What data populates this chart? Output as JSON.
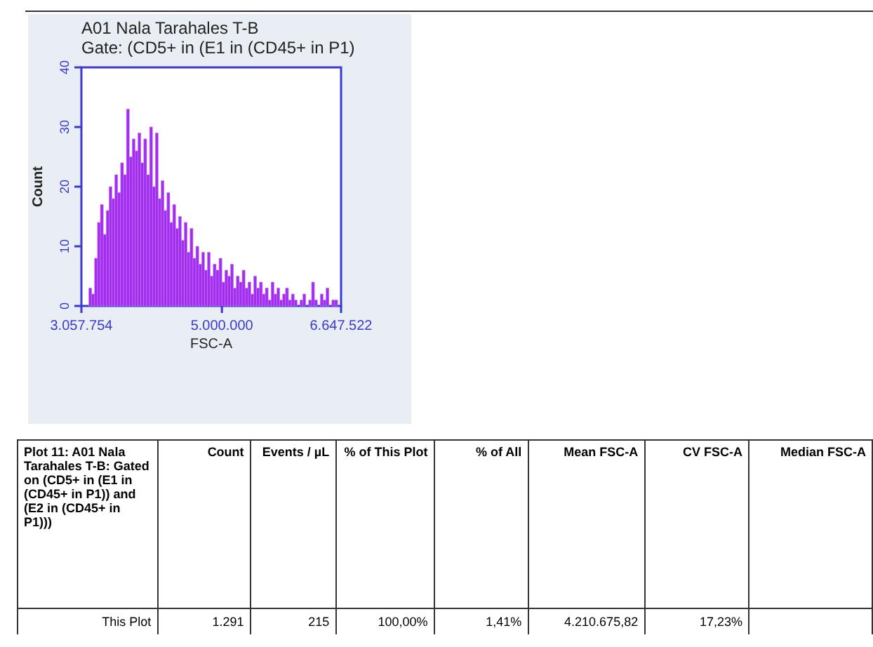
{
  "chart_data": {
    "type": "histogram",
    "title": "A01 Nala Tarahales T-B",
    "subtitle": "Gate: (CD5+ in (E1 in (CD45+ in P1)",
    "xlabel": "FSC-A",
    "ylabel": "Count",
    "color": "#a22cf0",
    "bins": [
      3080000,
      3120000,
      3160000,
      3200000,
      3240000,
      3280000,
      3320000,
      3360000,
      3400000,
      3440000,
      3480000,
      3520000,
      3560000,
      3600000,
      3640000,
      3680000,
      3720000,
      3760000,
      3800000,
      3840000,
      3880000,
      3920000,
      3960000,
      4000000,
      4040000,
      4080000,
      4120000,
      4160000,
      4200000,
      4240000,
      4280000,
      4320000,
      4360000,
      4400000,
      4440000,
      4480000,
      4520000,
      4560000,
      4600000,
      4640000,
      4680000,
      4720000,
      4760000,
      4800000,
      4840000,
      4880000,
      4920000,
      4960000,
      5000000,
      5040000,
      5080000,
      5120000,
      5160000,
      5200000,
      5240000,
      5280000,
      5320000,
      5360000,
      5400000,
      5440000,
      5480000,
      5520000,
      5560000,
      5600000,
      5640000,
      5680000,
      5720000,
      5760000,
      5800000,
      5840000,
      5880000,
      5920000,
      5960000,
      6000000,
      6040000,
      6080000,
      6120000,
      6160000,
      6200000,
      6240000,
      6280000,
      6320000,
      6360000,
      6400000,
      6440000,
      6480000,
      6520000,
      6560000,
      6600000,
      6640000
    ],
    "values": [
      0,
      0,
      3,
      2,
      8,
      14,
      17,
      12,
      16,
      20,
      18,
      22,
      19,
      24,
      22,
      33,
      25,
      28,
      26,
      29,
      24,
      28,
      22,
      30,
      20,
      29,
      18,
      21,
      16,
      19,
      14,
      17,
      13,
      15,
      11,
      14,
      9,
      13,
      8,
      10,
      7,
      9,
      6,
      9,
      5,
      7,
      6,
      8,
      4,
      6,
      5,
      7,
      3,
      5,
      4,
      6,
      3,
      4,
      2,
      5,
      3,
      4,
      2,
      3,
      1,
      4,
      2,
      3,
      1,
      2,
      3,
      1,
      2,
      1,
      0,
      1,
      2,
      0,
      1,
      4,
      1,
      0,
      2,
      1,
      3,
      0,
      1,
      1,
      0
    ],
    "xlim": [
      3057754,
      6647522
    ],
    "xticks": [
      {
        "value": 3057754,
        "label": "3.057.754"
      },
      {
        "value": 5000000,
        "label": "5.000.000"
      },
      {
        "value": 6647522,
        "label": "6.647.522"
      }
    ],
    "ylim": [
      0,
      40
    ],
    "yticks": [
      0,
      10,
      20,
      30,
      40
    ],
    "annotations": [
      "Plot 11: A01 Nala Tarahales T-B: Gated on (CD5+ in (E1 in (CD45+ in P1)) and (E2 in (CD45+ in P1)))",
      "Count",
      "Events / µL",
      "% of This Plot",
      "% of All",
      "Mean FSC-A",
      "CV FSC-A",
      "Median FSC-A",
      "This Plot",
      "1.291",
      "215",
      "100,00%",
      "1,41%",
      "4.210.675,82",
      "17,23%"
    ]
  }
}
